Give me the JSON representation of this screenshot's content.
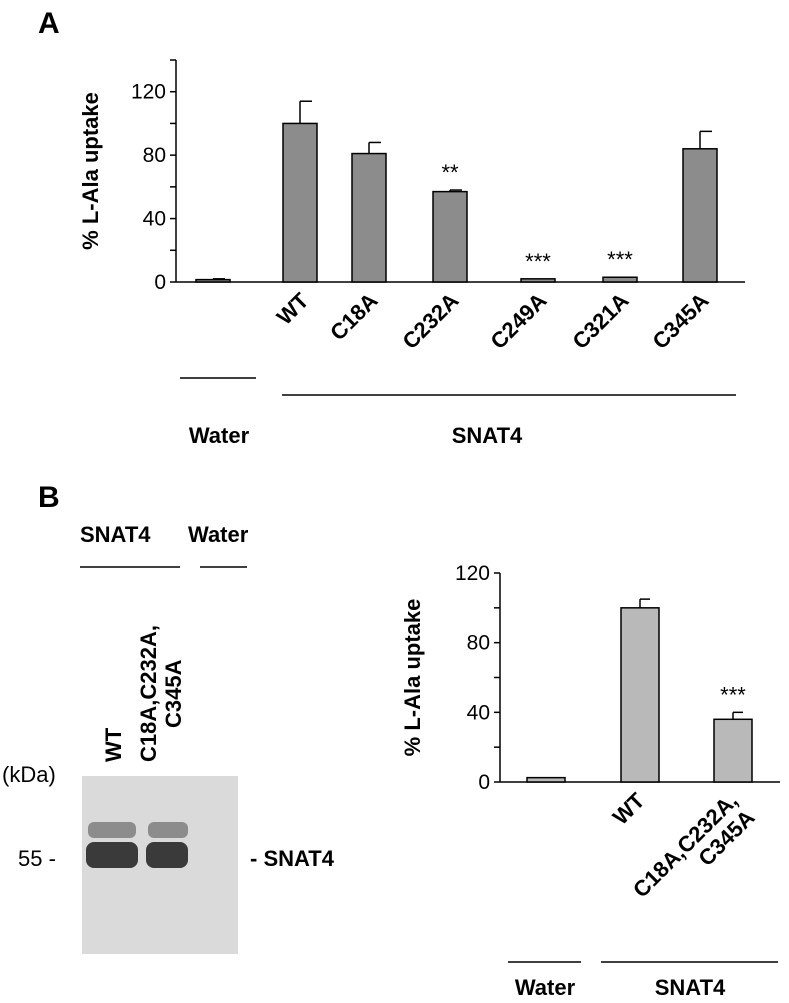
{
  "panel_a": {
    "letter": "A",
    "group_labels": [
      "Water",
      "SNAT4"
    ]
  },
  "panel_b": {
    "letter": "B",
    "blot": {
      "header_labels": [
        "SNAT4",
        "Water"
      ],
      "lane_labels": [
        "WT",
        "C18A,C232A,",
        "C345A"
      ],
      "unit_label": "(kDa)",
      "marker_label": "55 -",
      "band_label": "- SNAT4"
    },
    "group_labels": [
      "Water",
      "SNAT4"
    ]
  },
  "colors": {
    "bar_a": "#8c8c8c",
    "bar_b": "#b9b9b9",
    "blot_bg": "#dadada",
    "band": "#3a3a3a"
  },
  "chart_data": [
    {
      "type": "bar",
      "ylabel": "% L-Ala uptake",
      "ylim": [
        0,
        140
      ],
      "yticks": [
        0,
        40,
        80,
        120
      ],
      "categories": [
        "",
        "WT",
        "C18A",
        "C232A",
        "C249A",
        "C321A",
        "C345A"
      ],
      "values": [
        1.5,
        100,
        81,
        57,
        2,
        3,
        84
      ],
      "errors": [
        0.5,
        14,
        7,
        1,
        0,
        0,
        11
      ],
      "significance": [
        "",
        "",
        "",
        "**",
        "***",
        "***",
        ""
      ]
    },
    {
      "type": "bar",
      "ylabel": "% L-Ala uptake",
      "ylim": [
        0,
        120
      ],
      "yticks": [
        0,
        40,
        80,
        120
      ],
      "categories": [
        "",
        "WT",
        "C18A,C232A,\nC345A"
      ],
      "values": [
        2.5,
        100,
        36
      ],
      "errors": [
        0,
        5,
        4
      ],
      "significance": [
        "",
        "",
        "***"
      ]
    }
  ]
}
